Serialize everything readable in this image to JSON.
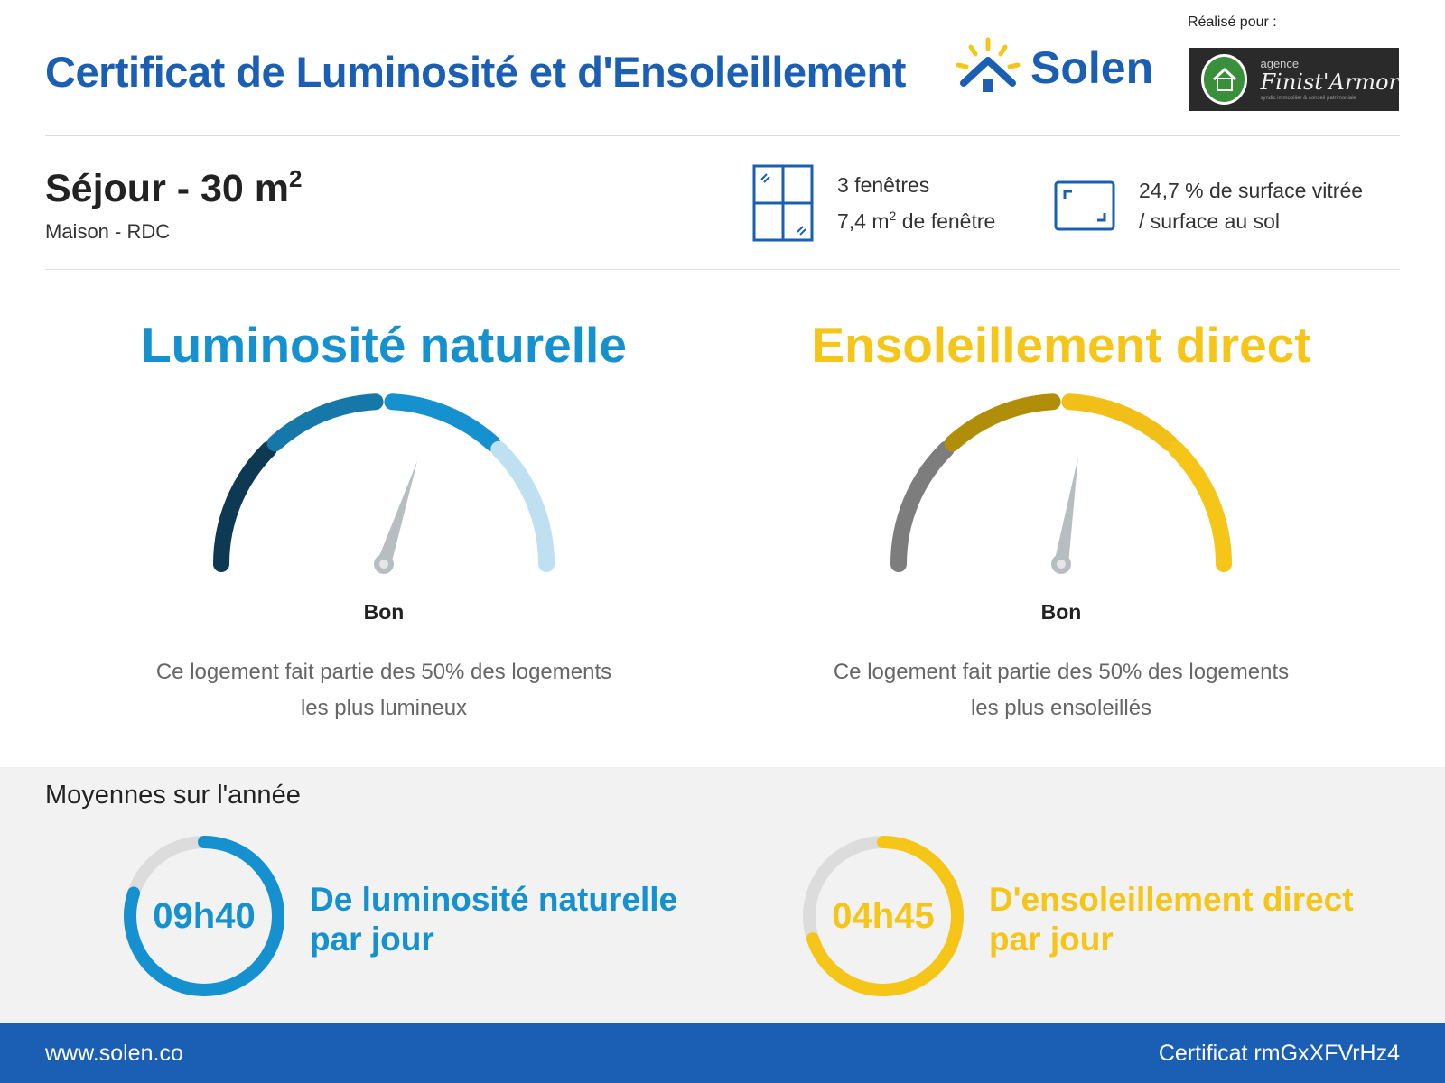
{
  "header": {
    "title": "Certificat de Luminosité et d'Ensoleillement",
    "brand_name": "Solen",
    "made_for_label": "Réalisé pour :",
    "client": {
      "agence": "agence",
      "name": "Finist'Armor",
      "tagline": "syndic immobilier & conseil patrimoniale"
    }
  },
  "room": {
    "name": "Séjour - 30 m",
    "name_sup": "2",
    "location": "Maison - RDC"
  },
  "stats": {
    "windows_count": "3 fenêtres",
    "windows_area_value": "7,4 m",
    "windows_area_sup": "2",
    "windows_area_suffix": " de fenêtre",
    "glazing_ratio_line1": "24,7 % de surface vitrée",
    "glazing_ratio_line2": "/ surface au sol"
  },
  "gauges": [
    {
      "title": "Luminosité naturelle",
      "title_color": "#1591cf",
      "segment_colors": [
        "#0d3a52",
        "#1678a8",
        "#1591cf",
        "#bfe0f0"
      ],
      "needle_level": 0.6,
      "rating": "Bon",
      "description": "Ce logement fait partie des 50% des logements les plus lumineux"
    },
    {
      "title": "Ensoleillement direct",
      "title_color": "#f5c518",
      "segment_colors": [
        "#7d7d7d",
        "#b08e0a",
        "#f2bf18",
        "#f5c518"
      ],
      "needle_level": 0.55,
      "rating": "Bon",
      "description": "Ce logement fait partie des 50% des logements les plus ensoleillés"
    }
  ],
  "averages": {
    "title": "Moyennes sur l'année",
    "items": [
      {
        "value": "09h40",
        "label_line1": "De luminosité naturelle",
        "label_line2": "par jour",
        "color": "#1591cf",
        "fraction": 0.8
      },
      {
        "value": "04h45",
        "label_line1": "D'ensoleillement direct",
        "label_line2": "par jour",
        "color": "#f5c518",
        "fraction": 0.7
      }
    ]
  },
  "footer": {
    "website": "www.solen.co",
    "certificate": "Certificat rmGxXFVrHz4"
  }
}
